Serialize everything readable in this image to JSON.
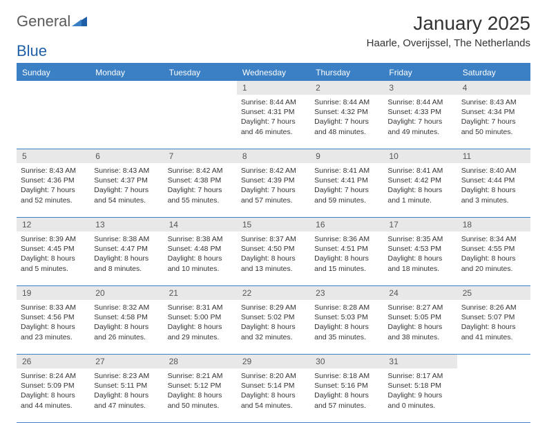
{
  "logo": {
    "text1": "General",
    "text2": "Blue"
  },
  "title": "January 2025",
  "location": "Haarle, Overijssel, The Netherlands",
  "colors": {
    "accent": "#3b7fc4",
    "daynum_bg": "#e8e8e8",
    "text": "#333333"
  },
  "day_names": [
    "Sunday",
    "Monday",
    "Tuesday",
    "Wednesday",
    "Thursday",
    "Friday",
    "Saturday"
  ],
  "weeks": [
    [
      null,
      null,
      null,
      {
        "n": "1",
        "sr": "Sunrise: 8:44 AM",
        "ss": "Sunset: 4:31 PM",
        "d1": "Daylight: 7 hours",
        "d2": "and 46 minutes."
      },
      {
        "n": "2",
        "sr": "Sunrise: 8:44 AM",
        "ss": "Sunset: 4:32 PM",
        "d1": "Daylight: 7 hours",
        "d2": "and 48 minutes."
      },
      {
        "n": "3",
        "sr": "Sunrise: 8:44 AM",
        "ss": "Sunset: 4:33 PM",
        "d1": "Daylight: 7 hours",
        "d2": "and 49 minutes."
      },
      {
        "n": "4",
        "sr": "Sunrise: 8:43 AM",
        "ss": "Sunset: 4:34 PM",
        "d1": "Daylight: 7 hours",
        "d2": "and 50 minutes."
      }
    ],
    [
      {
        "n": "5",
        "sr": "Sunrise: 8:43 AM",
        "ss": "Sunset: 4:36 PM",
        "d1": "Daylight: 7 hours",
        "d2": "and 52 minutes."
      },
      {
        "n": "6",
        "sr": "Sunrise: 8:43 AM",
        "ss": "Sunset: 4:37 PM",
        "d1": "Daylight: 7 hours",
        "d2": "and 54 minutes."
      },
      {
        "n": "7",
        "sr": "Sunrise: 8:42 AM",
        "ss": "Sunset: 4:38 PM",
        "d1": "Daylight: 7 hours",
        "d2": "and 55 minutes."
      },
      {
        "n": "8",
        "sr": "Sunrise: 8:42 AM",
        "ss": "Sunset: 4:39 PM",
        "d1": "Daylight: 7 hours",
        "d2": "and 57 minutes."
      },
      {
        "n": "9",
        "sr": "Sunrise: 8:41 AM",
        "ss": "Sunset: 4:41 PM",
        "d1": "Daylight: 7 hours",
        "d2": "and 59 minutes."
      },
      {
        "n": "10",
        "sr": "Sunrise: 8:41 AM",
        "ss": "Sunset: 4:42 PM",
        "d1": "Daylight: 8 hours",
        "d2": "and 1 minute."
      },
      {
        "n": "11",
        "sr": "Sunrise: 8:40 AM",
        "ss": "Sunset: 4:44 PM",
        "d1": "Daylight: 8 hours",
        "d2": "and 3 minutes."
      }
    ],
    [
      {
        "n": "12",
        "sr": "Sunrise: 8:39 AM",
        "ss": "Sunset: 4:45 PM",
        "d1": "Daylight: 8 hours",
        "d2": "and 5 minutes."
      },
      {
        "n": "13",
        "sr": "Sunrise: 8:38 AM",
        "ss": "Sunset: 4:47 PM",
        "d1": "Daylight: 8 hours",
        "d2": "and 8 minutes."
      },
      {
        "n": "14",
        "sr": "Sunrise: 8:38 AM",
        "ss": "Sunset: 4:48 PM",
        "d1": "Daylight: 8 hours",
        "d2": "and 10 minutes."
      },
      {
        "n": "15",
        "sr": "Sunrise: 8:37 AM",
        "ss": "Sunset: 4:50 PM",
        "d1": "Daylight: 8 hours",
        "d2": "and 13 minutes."
      },
      {
        "n": "16",
        "sr": "Sunrise: 8:36 AM",
        "ss": "Sunset: 4:51 PM",
        "d1": "Daylight: 8 hours",
        "d2": "and 15 minutes."
      },
      {
        "n": "17",
        "sr": "Sunrise: 8:35 AM",
        "ss": "Sunset: 4:53 PM",
        "d1": "Daylight: 8 hours",
        "d2": "and 18 minutes."
      },
      {
        "n": "18",
        "sr": "Sunrise: 8:34 AM",
        "ss": "Sunset: 4:55 PM",
        "d1": "Daylight: 8 hours",
        "d2": "and 20 minutes."
      }
    ],
    [
      {
        "n": "19",
        "sr": "Sunrise: 8:33 AM",
        "ss": "Sunset: 4:56 PM",
        "d1": "Daylight: 8 hours",
        "d2": "and 23 minutes."
      },
      {
        "n": "20",
        "sr": "Sunrise: 8:32 AM",
        "ss": "Sunset: 4:58 PM",
        "d1": "Daylight: 8 hours",
        "d2": "and 26 minutes."
      },
      {
        "n": "21",
        "sr": "Sunrise: 8:31 AM",
        "ss": "Sunset: 5:00 PM",
        "d1": "Daylight: 8 hours",
        "d2": "and 29 minutes."
      },
      {
        "n": "22",
        "sr": "Sunrise: 8:29 AM",
        "ss": "Sunset: 5:02 PM",
        "d1": "Daylight: 8 hours",
        "d2": "and 32 minutes."
      },
      {
        "n": "23",
        "sr": "Sunrise: 8:28 AM",
        "ss": "Sunset: 5:03 PM",
        "d1": "Daylight: 8 hours",
        "d2": "and 35 minutes."
      },
      {
        "n": "24",
        "sr": "Sunrise: 8:27 AM",
        "ss": "Sunset: 5:05 PM",
        "d1": "Daylight: 8 hours",
        "d2": "and 38 minutes."
      },
      {
        "n": "25",
        "sr": "Sunrise: 8:26 AM",
        "ss": "Sunset: 5:07 PM",
        "d1": "Daylight: 8 hours",
        "d2": "and 41 minutes."
      }
    ],
    [
      {
        "n": "26",
        "sr": "Sunrise: 8:24 AM",
        "ss": "Sunset: 5:09 PM",
        "d1": "Daylight: 8 hours",
        "d2": "and 44 minutes."
      },
      {
        "n": "27",
        "sr": "Sunrise: 8:23 AM",
        "ss": "Sunset: 5:11 PM",
        "d1": "Daylight: 8 hours",
        "d2": "and 47 minutes."
      },
      {
        "n": "28",
        "sr": "Sunrise: 8:21 AM",
        "ss": "Sunset: 5:12 PM",
        "d1": "Daylight: 8 hours",
        "d2": "and 50 minutes."
      },
      {
        "n": "29",
        "sr": "Sunrise: 8:20 AM",
        "ss": "Sunset: 5:14 PM",
        "d1": "Daylight: 8 hours",
        "d2": "and 54 minutes."
      },
      {
        "n": "30",
        "sr": "Sunrise: 8:18 AM",
        "ss": "Sunset: 5:16 PM",
        "d1": "Daylight: 8 hours",
        "d2": "and 57 minutes."
      },
      {
        "n": "31",
        "sr": "Sunrise: 8:17 AM",
        "ss": "Sunset: 5:18 PM",
        "d1": "Daylight: 9 hours",
        "d2": "and 0 minutes."
      },
      null
    ]
  ]
}
